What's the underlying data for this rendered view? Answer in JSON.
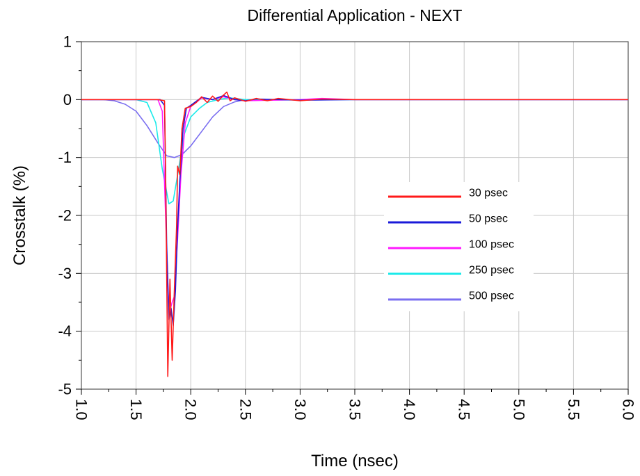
{
  "chart_data": {
    "type": "line",
    "title": "Differential Application - NEXT",
    "xlabel": "Time (nsec)",
    "ylabel": "Crosstalk (%)",
    "xlim": [
      1.0,
      6.0
    ],
    "ylim": [
      -5,
      1
    ],
    "grid": true,
    "legend_position": "right",
    "x_ticks": [
      "1.0",
      "1.5",
      "2.0",
      "2.5",
      "3.0",
      "3.5",
      "4.0",
      "4.5",
      "5.0",
      "5.5",
      "6.0"
    ],
    "y_ticks": [
      "1",
      "0",
      "-1",
      "-2",
      "-3",
      "-4",
      "-5"
    ],
    "series": [
      {
        "name": "30 psec",
        "color": "#ff1a1a",
        "points": [
          [
            1.0,
            0
          ],
          [
            1.7,
            0
          ],
          [
            1.76,
            -0.02
          ],
          [
            1.77,
            -1.2
          ],
          [
            1.79,
            -4.78
          ],
          [
            1.81,
            -3.1
          ],
          [
            1.83,
            -4.5
          ],
          [
            1.85,
            -3.3
          ],
          [
            1.87,
            -2.2
          ],
          [
            1.88,
            -1.15
          ],
          [
            1.9,
            -1.3
          ],
          [
            1.92,
            -0.5
          ],
          [
            1.95,
            -0.15
          ],
          [
            2.0,
            -0.12
          ],
          [
            2.05,
            -0.05
          ],
          [
            2.1,
            0.05
          ],
          [
            2.15,
            -0.05
          ],
          [
            2.2,
            0.06
          ],
          [
            2.25,
            -0.03
          ],
          [
            2.3,
            0.08
          ],
          [
            2.33,
            0.13
          ],
          [
            2.36,
            -0.02
          ],
          [
            2.4,
            0.03
          ],
          [
            2.5,
            -0.03
          ],
          [
            2.6,
            0.02
          ],
          [
            2.7,
            -0.02
          ],
          [
            2.8,
            0.02
          ],
          [
            2.9,
            0.0
          ],
          [
            3.0,
            -0.02
          ],
          [
            3.2,
            0.01
          ],
          [
            3.5,
            0
          ],
          [
            6.0,
            0
          ]
        ]
      },
      {
        "name": "50 psec",
        "color": "#1a1ad9",
        "points": [
          [
            1.0,
            0
          ],
          [
            1.72,
            0
          ],
          [
            1.76,
            -0.1
          ],
          [
            1.78,
            -2.5
          ],
          [
            1.8,
            -3.8
          ],
          [
            1.82,
            -3.6
          ],
          [
            1.84,
            -3.9
          ],
          [
            1.86,
            -3.3
          ],
          [
            1.88,
            -2.2
          ],
          [
            1.9,
            -1.4
          ],
          [
            1.93,
            -0.5
          ],
          [
            1.96,
            -0.15
          ],
          [
            2.0,
            -0.1
          ],
          [
            2.05,
            -0.03
          ],
          [
            2.1,
            0.04
          ],
          [
            2.2,
            0.0
          ],
          [
            2.3,
            0.07
          ],
          [
            2.4,
            0.0
          ],
          [
            2.5,
            -0.02
          ],
          [
            2.6,
            0.01
          ],
          [
            2.8,
            0.0
          ],
          [
            3.0,
            -0.01
          ],
          [
            3.5,
            0
          ],
          [
            6.0,
            0
          ]
        ]
      },
      {
        "name": "100 psec",
        "color": "#ff1aff",
        "points": [
          [
            1.0,
            0
          ],
          [
            1.7,
            0
          ],
          [
            1.74,
            -0.2
          ],
          [
            1.77,
            -2.0
          ],
          [
            1.8,
            -3.7
          ],
          [
            1.83,
            -3.5
          ],
          [
            1.85,
            -3.4
          ],
          [
            1.88,
            -2.4
          ],
          [
            1.91,
            -1.3
          ],
          [
            1.95,
            -0.4
          ],
          [
            2.0,
            -0.12
          ],
          [
            2.05,
            -0.05
          ],
          [
            2.1,
            0.03
          ],
          [
            2.2,
            0.0
          ],
          [
            2.3,
            0.05
          ],
          [
            2.4,
            0.0
          ],
          [
            2.5,
            -0.02
          ],
          [
            3.0,
            0.0
          ],
          [
            3.2,
            0.02
          ],
          [
            3.5,
            0
          ],
          [
            6.0,
            0
          ]
        ]
      },
      {
        "name": "250 psec",
        "color": "#1aeaea",
        "points": [
          [
            1.0,
            0
          ],
          [
            1.5,
            0
          ],
          [
            1.6,
            -0.05
          ],
          [
            1.68,
            -0.4
          ],
          [
            1.74,
            -1.2
          ],
          [
            1.8,
            -1.8
          ],
          [
            1.84,
            -1.75
          ],
          [
            1.88,
            -1.3
          ],
          [
            1.94,
            -0.6
          ],
          [
            2.0,
            -0.3
          ],
          [
            2.08,
            -0.15
          ],
          [
            2.15,
            -0.05
          ],
          [
            2.25,
            0.0
          ],
          [
            2.35,
            0.03
          ],
          [
            2.5,
            0.0
          ],
          [
            6.0,
            0
          ]
        ]
      },
      {
        "name": "500 psec",
        "color": "#7a6ef0",
        "points": [
          [
            1.0,
            0
          ],
          [
            1.2,
            0
          ],
          [
            1.3,
            -0.02
          ],
          [
            1.4,
            -0.08
          ],
          [
            1.5,
            -0.2
          ],
          [
            1.6,
            -0.45
          ],
          [
            1.7,
            -0.75
          ],
          [
            1.78,
            -0.97
          ],
          [
            1.85,
            -1.0
          ],
          [
            1.92,
            -0.95
          ],
          [
            2.0,
            -0.8
          ],
          [
            2.1,
            -0.55
          ],
          [
            2.2,
            -0.3
          ],
          [
            2.3,
            -0.12
          ],
          [
            2.4,
            -0.04
          ],
          [
            2.5,
            0.0
          ],
          [
            6.0,
            0
          ]
        ]
      }
    ]
  }
}
